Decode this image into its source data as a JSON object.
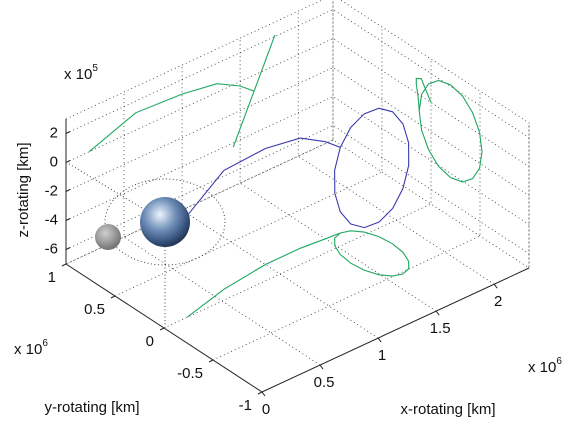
{
  "chart_data": {
    "type": "line3d",
    "xlabel": "x-rotating [km]",
    "ylabel": "y-rotating [km]",
    "zlabel": "z-rotating [km]",
    "x_multiplier": {
      "base": "x 10",
      "exponent": "6"
    },
    "y_multiplier": {
      "base": "x 10",
      "exponent": "6"
    },
    "z_multiplier": {
      "base": "x 10",
      "exponent": "5"
    },
    "xlim": [
      0,
      2.3
    ],
    "ylim": [
      -1,
      1
    ],
    "zlim": [
      -7,
      3
    ],
    "xticks": [
      0,
      0.5,
      1,
      1.5,
      2
    ],
    "yticks": [
      -1,
      -0.5,
      0,
      0.5,
      1
    ],
    "zticks": [
      -6,
      -4,
      -2,
      0,
      2
    ],
    "grid": true,
    "projection_color": "#1fa85f",
    "series": [
      {
        "color": "#3a3ab0",
        "x": [
          0.2,
          0.6,
          1.0,
          1.3,
          1.5,
          1.62,
          1.551,
          1.493,
          1.454,
          1.44,
          1.454,
          1.493,
          1.551,
          1.62,
          1.689,
          1.747,
          1.786,
          1.8,
          1.786,
          1.747,
          1.689,
          1.62
        ],
        "y": [
          0,
          0.1,
          0.15,
          0.15,
          0.13,
          0.12,
          0.096,
          0.026,
          -0.077,
          -0.2,
          -0.323,
          -0.426,
          -0.496,
          -0.52,
          -0.496,
          -0.426,
          -0.323,
          -0.2,
          -0.077,
          0.026,
          0.096,
          0.12
        ],
        "z": [
          0,
          1.2,
          1.0,
          0.6,
          -0.3,
          -1.1,
          -2.326,
          -3.362,
          -4.057,
          -4.3,
          -4.057,
          -3.362,
          -2.326,
          -1.1,
          0.126,
          1.162,
          1.857,
          2.1,
          1.857,
          1.162,
          0.126,
          -1.1
        ]
      }
    ]
  }
}
